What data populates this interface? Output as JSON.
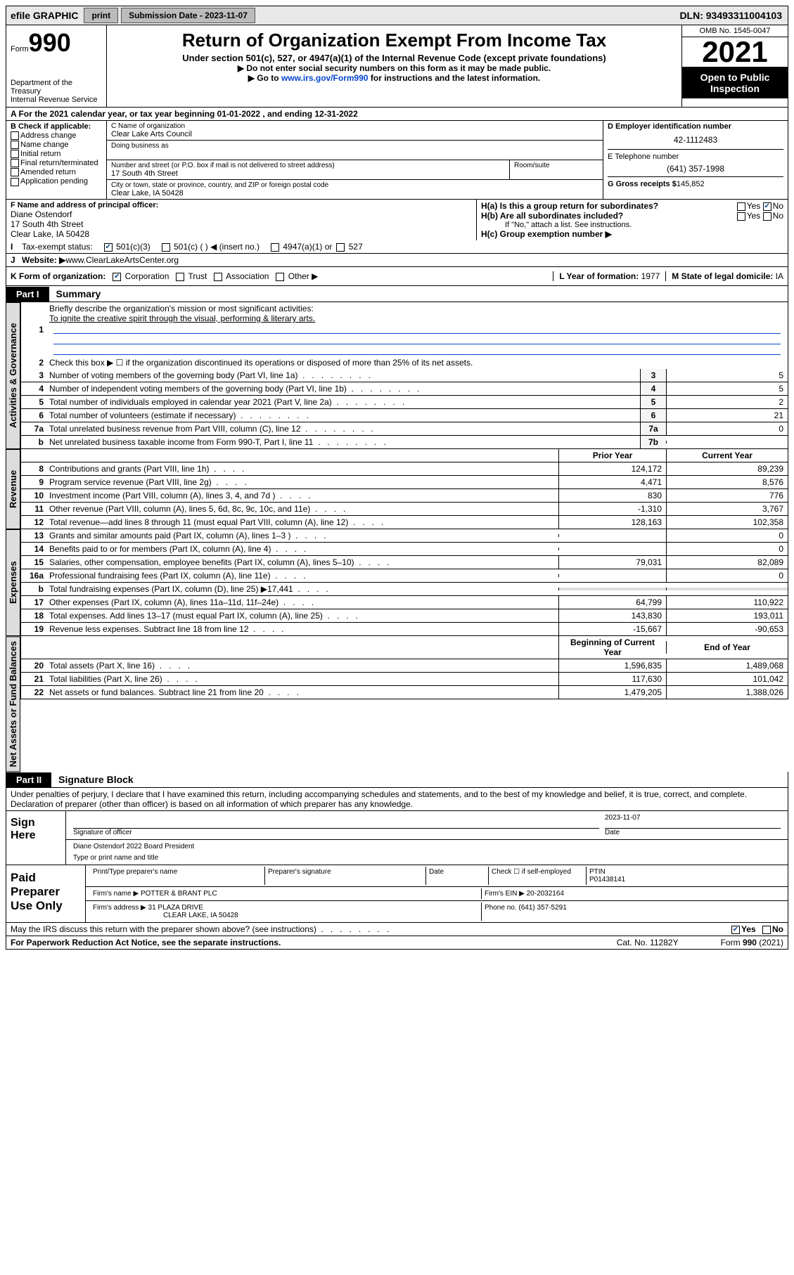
{
  "topbar": {
    "efile": "efile GRAPHIC",
    "print": "print",
    "subdate_label": "Submission Date - 2023-11-07",
    "dln": "DLN: 93493311004103"
  },
  "header": {
    "form_word": "Form",
    "form_num": "990",
    "title": "Return of Organization Exempt From Income Tax",
    "sub1": "Under section 501(c), 527, or 4947(a)(1) of the Internal Revenue Code (except private foundations)",
    "sub2": "▶ Do not enter social security numbers on this form as it may be made public.",
    "sub3_pre": "▶ Go to ",
    "sub3_link": "www.irs.gov/Form990",
    "sub3_post": " for instructions and the latest information.",
    "dept": "Department of the Treasury\nInternal Revenue Service",
    "omb": "OMB No. 1545-0047",
    "year": "2021",
    "insp": "Open to Public Inspection"
  },
  "rowA": "A For the 2021 calendar year, or tax year beginning 01-01-2022   , and ending 12-31-2022",
  "B": {
    "label": "B Check if applicable:",
    "items": [
      "Address change",
      "Name change",
      "Initial return",
      "Final return/terminated",
      "Amended return",
      "Application pending"
    ]
  },
  "C": {
    "name_lbl": "C Name of organization",
    "name": "Clear Lake Arts Council",
    "dba_lbl": "Doing business as",
    "street_lbl": "Number and street (or P.O. box if mail is not delivered to street address)",
    "room_lbl": "Room/suite",
    "street": "17 South 4th Street",
    "city_lbl": "City or town, state or province, country, and ZIP or foreign postal code",
    "city": "Clear Lake, IA  50428"
  },
  "D": {
    "ein_lbl": "D Employer identification number",
    "ein": "42-1112483",
    "phone_lbl": "E Telephone number",
    "phone": "(641) 357-1998",
    "gross_lbl": "G Gross receipts $",
    "gross": "145,852"
  },
  "F": {
    "lbl": "F Name and address of principal officer:",
    "name": "Diane Ostendorf",
    "addr1": "17 South 4th Street",
    "addr2": "Clear Lake, IA  50428"
  },
  "H": {
    "ha": "H(a)  Is this a group return for subordinates?",
    "hb": "H(b)  Are all subordinates included?",
    "hb_note": "If \"No,\" attach a list. See instructions.",
    "hc": "H(c)  Group exemption number ▶",
    "yes": "Yes",
    "no": "No"
  },
  "I": {
    "lbl": "Tax-exempt status:",
    "o1": "501(c)(3)",
    "o2": "501(c) (  ) ◀ (insert no.)",
    "o3": "4947(a)(1) or",
    "o4": "527"
  },
  "J": {
    "lbl": "Website: ▶ ",
    "val": "www.ClearLakeArtsCenter.org"
  },
  "K": {
    "lbl": "K Form of organization:",
    "o1": "Corporation",
    "o2": "Trust",
    "o3": "Association",
    "o4": "Other ▶"
  },
  "L": {
    "lbl": "L Year of formation:",
    "val": "1977"
  },
  "M": {
    "lbl": "M State of legal domicile:",
    "val": "IA"
  },
  "part1": {
    "label": "Part I",
    "title": "Summary"
  },
  "summary": {
    "l1_lbl": "Briefly describe the organization's mission or most significant activities:",
    "l1_val": "To ignite the creative spirit through the visual, performing & literary arts.",
    "l2": "Check this box ▶ ☐  if the organization discontinued its operations or disposed of more than 25% of its net assets.",
    "l3": {
      "d": "Number of voting members of the governing body (Part VI, line 1a)",
      "n": "3",
      "v": "5"
    },
    "l4": {
      "d": "Number of independent voting members of the governing body (Part VI, line 1b)",
      "n": "4",
      "v": "5"
    },
    "l5": {
      "d": "Total number of individuals employed in calendar year 2021 (Part V, line 2a)",
      "n": "5",
      "v": "2"
    },
    "l6": {
      "d": "Total number of volunteers (estimate if necessary)",
      "n": "6",
      "v": "21"
    },
    "l7a": {
      "d": "Total unrelated business revenue from Part VIII, column (C), line 12",
      "n": "7a",
      "v": "0"
    },
    "l7b": {
      "d": "Net unrelated business taxable income from Form 990-T, Part I, line 11",
      "n": "7b",
      "v": ""
    }
  },
  "cols": {
    "prior": "Prior Year",
    "curr": "Current Year",
    "begin": "Beginning of Current Year",
    "end": "End of Year"
  },
  "revenue": [
    {
      "n": "8",
      "d": "Contributions and grants (Part VIII, line 1h)",
      "p": "124,172",
      "c": "89,239"
    },
    {
      "n": "9",
      "d": "Program service revenue (Part VIII, line 2g)",
      "p": "4,471",
      "c": "8,576"
    },
    {
      "n": "10",
      "d": "Investment income (Part VIII, column (A), lines 3, 4, and 7d )",
      "p": "830",
      "c": "776"
    },
    {
      "n": "11",
      "d": "Other revenue (Part VIII, column (A), lines 5, 6d, 8c, 9c, 10c, and 11e)",
      "p": "-1,310",
      "c": "3,767"
    },
    {
      "n": "12",
      "d": "Total revenue—add lines 8 through 11 (must equal Part VIII, column (A), line 12)",
      "p": "128,163",
      "c": "102,358"
    }
  ],
  "expenses": [
    {
      "n": "13",
      "d": "Grants and similar amounts paid (Part IX, column (A), lines 1–3 )",
      "p": "",
      "c": "0"
    },
    {
      "n": "14",
      "d": "Benefits paid to or for members (Part IX, column (A), line 4)",
      "p": "",
      "c": "0"
    },
    {
      "n": "15",
      "d": "Salaries, other compensation, employee benefits (Part IX, column (A), lines 5–10)",
      "p": "79,031",
      "c": "82,089"
    },
    {
      "n": "16a",
      "d": "Professional fundraising fees (Part IX, column (A), line 11e)",
      "p": "",
      "c": "0"
    },
    {
      "n": "b",
      "d": "Total fundraising expenses (Part IX, column (D), line 25) ▶17,441",
      "p": "SHADE",
      "c": "SHADE"
    },
    {
      "n": "17",
      "d": "Other expenses (Part IX, column (A), lines 11a–11d, 11f–24e)",
      "p": "64,799",
      "c": "110,922"
    },
    {
      "n": "18",
      "d": "Total expenses. Add lines 13–17 (must equal Part IX, column (A), line 25)",
      "p": "143,830",
      "c": "193,011"
    },
    {
      "n": "19",
      "d": "Revenue less expenses. Subtract line 18 from line 12",
      "p": "-15,667",
      "c": "-90,653"
    }
  ],
  "netassets": [
    {
      "n": "20",
      "d": "Total assets (Part X, line 16)",
      "p": "1,596,835",
      "c": "1,489,068"
    },
    {
      "n": "21",
      "d": "Total liabilities (Part X, line 26)",
      "p": "117,630",
      "c": "101,042"
    },
    {
      "n": "22",
      "d": "Net assets or fund balances. Subtract line 21 from line 20",
      "p": "1,479,205",
      "c": "1,388,026"
    }
  ],
  "part2": {
    "label": "Part II",
    "title": "Signature Block"
  },
  "sig": {
    "decl": "Under penalties of perjury, I declare that I have examined this return, including accompanying schedules and statements, and to the best of my knowledge and belief, it is true, correct, and complete. Declaration of preparer (other than officer) is based on all information of which preparer has any knowledge.",
    "signhere": "Sign Here",
    "sigoff": "Signature of officer",
    "date_lbl": "Date",
    "date": "2023-11-07",
    "name": "Diane Ostendorf 2022 Board President",
    "type": "Type or print name and title",
    "paid": "Paid Preparer Use Only",
    "prep_name_lbl": "Print/Type preparer's name",
    "prep_sig_lbl": "Preparer's signature",
    "check_lbl": "Check ☐ if self-employed",
    "ptin_lbl": "PTIN",
    "ptin": "P01438141",
    "firm_name_lbl": "Firm's name   ▶",
    "firm_name": "POTTER & BRANT PLC",
    "firm_ein_lbl": "Firm's EIN ▶",
    "firm_ein": "20-2032164",
    "firm_addr_lbl": "Firm's address ▶",
    "firm_addr": "31 PLAZA DRIVE",
    "firm_city": "CLEAR LAKE, IA  50428",
    "firm_phone_lbl": "Phone no.",
    "firm_phone": "(641) 357-5291"
  },
  "footer": {
    "discuss": "May the IRS discuss this return with the preparer shown above? (see instructions)",
    "yes": "Yes",
    "no": "No",
    "pra": "For Paperwork Reduction Act Notice, see the separate instructions.",
    "cat": "Cat. No. 11282Y",
    "form": "Form 990 (2021)"
  },
  "tabs": {
    "act": "Activities & Governance",
    "rev": "Revenue",
    "exp": "Expenses",
    "net": "Net Assets or Fund Balances"
  }
}
